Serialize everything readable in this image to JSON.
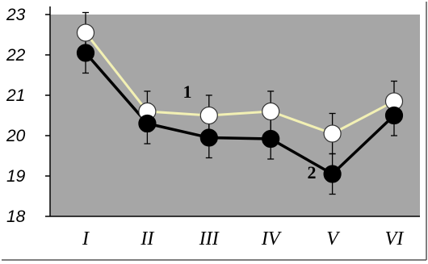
{
  "chart_data": {
    "type": "line",
    "title": "",
    "xlabel": "",
    "ylabel": "",
    "categories": [
      "I",
      "II",
      "III",
      "IV",
      "V",
      "VI"
    ],
    "ylim": [
      18,
      23
    ],
    "yticks": [
      18,
      19,
      20,
      21,
      22,
      23
    ],
    "grid": false,
    "legend": "none",
    "colors": {
      "plot_background": "#a6a6a6",
      "series_1_line": "#f2f0b4",
      "series_1_marker": "#ffffff",
      "series_2_line": "#000000",
      "series_2_marker": "#000000",
      "error_bars": "#000000"
    },
    "series": [
      {
        "name": "1",
        "values": [
          22.55,
          20.6,
          20.5,
          20.6,
          20.05,
          20.85
        ],
        "errors": [
          0.5,
          0.5,
          0.5,
          0.5,
          0.5,
          0.5
        ],
        "marker": "open-circle"
      },
      {
        "name": "2",
        "values": [
          22.05,
          20.3,
          19.95,
          19.92,
          19.05,
          20.5
        ],
        "errors": [
          0.5,
          0.5,
          0.5,
          0.5,
          0.5,
          0.5
        ],
        "marker": "filled-circle"
      }
    ]
  }
}
